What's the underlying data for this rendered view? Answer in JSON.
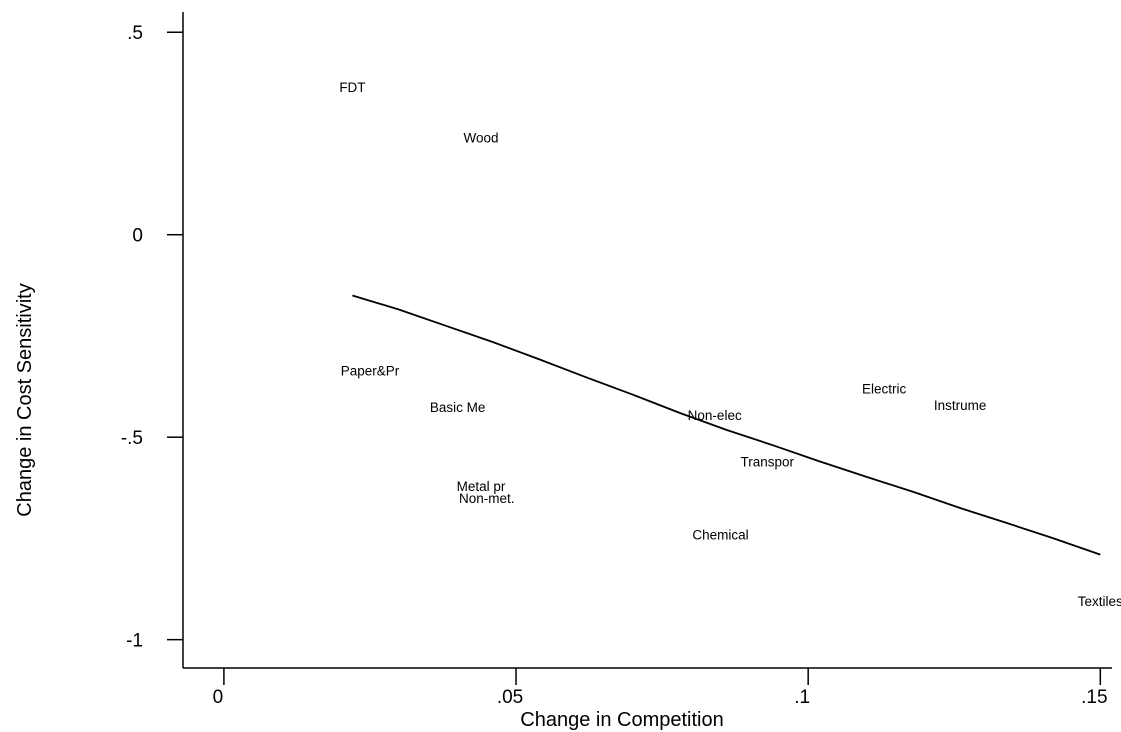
{
  "chart_data": {
    "type": "scatter",
    "title": "",
    "xlabel": "Change in Competition",
    "ylabel": "Change in Cost Sensitivity",
    "xlim": [
      -0.007,
      0.152
    ],
    "ylim": [
      -1.07,
      0.55
    ],
    "grid": false,
    "legend": "none",
    "x_ticks": [
      {
        "value": 0,
        "label": "0"
      },
      {
        "value": 0.05,
        "label": ".05"
      },
      {
        "value": 0.1,
        "label": ".1"
      },
      {
        "value": 0.15,
        "label": ".15"
      }
    ],
    "y_ticks": [
      {
        "value": 0.5,
        "label": ".5"
      },
      {
        "value": 0,
        "label": "0"
      },
      {
        "value": -0.5,
        "label": "-.5"
      },
      {
        "value": -1,
        "label": "-1"
      }
    ],
    "points": [
      {
        "label": "FDT",
        "x": 0.022,
        "y": 0.365
      },
      {
        "label": "Wood",
        "x": 0.044,
        "y": 0.24
      },
      {
        "label": "Paper&Pr",
        "x": 0.025,
        "y": -0.335
      },
      {
        "label": "Basic Me",
        "x": 0.04,
        "y": -0.425
      },
      {
        "label": "Metal pr",
        "x": 0.044,
        "y": -0.62
      },
      {
        "label": "Non-met.",
        "x": 0.045,
        "y": -0.65
      },
      {
        "label": "Non-elec",
        "x": 0.084,
        "y": -0.445
      },
      {
        "label": "Transpor",
        "x": 0.093,
        "y": -0.56
      },
      {
        "label": "Chemical",
        "x": 0.085,
        "y": -0.74
      },
      {
        "label": "Electric",
        "x": 0.113,
        "y": -0.38
      },
      {
        "label": "Instrume",
        "x": 0.126,
        "y": -0.42
      },
      {
        "label": "Textiles",
        "x": 0.15,
        "y": -0.905
      }
    ],
    "series": [
      {
        "type": "line",
        "x": [
          0.022,
          0.03,
          0.038,
          0.046,
          0.054,
          0.062,
          0.07,
          0.078,
          0.086,
          0.094,
          0.102,
          0.11,
          0.118,
          0.126,
          0.134,
          0.142,
          0.15
        ],
        "y": [
          -0.15,
          -0.185,
          -0.225,
          -0.265,
          -0.308,
          -0.352,
          -0.395,
          -0.44,
          -0.482,
          -0.52,
          -0.56,
          -0.598,
          -0.635,
          -0.675,
          -0.712,
          -0.75,
          -0.79
        ]
      }
    ]
  }
}
